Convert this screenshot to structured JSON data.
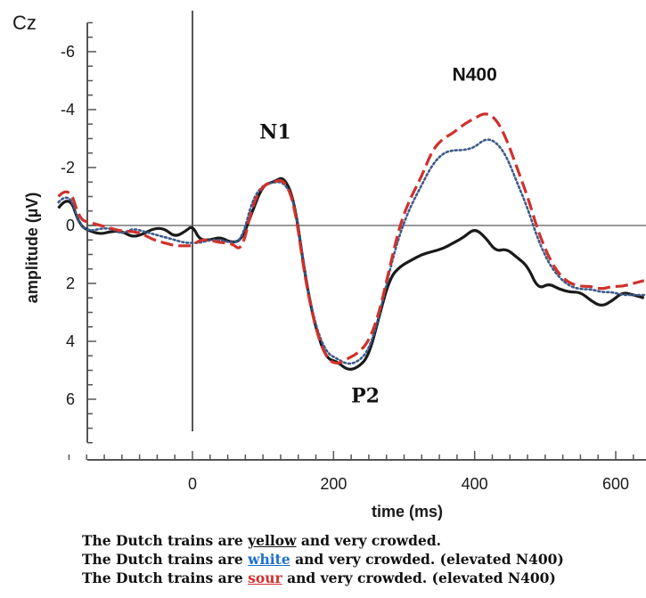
{
  "chart_data": {
    "type": "line",
    "channel_label": "Cz",
    "xlabel": "time (ms)",
    "ylabel": "amplitude (µV)",
    "xlim": [
      -190,
      640
    ],
    "ylim": [
      -7,
      7.5
    ],
    "y_inverted": true,
    "x_ticks": [
      0,
      200,
      400,
      600
    ],
    "x_tick_labels": [
      "0",
      "200",
      "400",
      "600"
    ],
    "y_ticks": [
      -6,
      -4,
      -2,
      0,
      2,
      4,
      6
    ],
    "y_tick_labels": [
      "-6",
      "-4",
      "-2",
      "0",
      "2",
      "4",
      "6"
    ],
    "annotations": [
      {
        "text": "N1",
        "x": 95,
        "y": -3.0
      },
      {
        "text": "P2",
        "x": 225,
        "y": 6.1
      },
      {
        "text": "N400",
        "x": 400,
        "y": -5.0
      }
    ],
    "series": [
      {
        "color": "#1a1a1a",
        "style": "solid",
        "x": [
          -190,
          -175,
          -160,
          -145,
          -130,
          -115,
          -100,
          -85,
          -70,
          -55,
          -40,
          -25,
          -10,
          0,
          10,
          25,
          40,
          55,
          70,
          85,
          100,
          115,
          130,
          145,
          160,
          175,
          190,
          205,
          220,
          235,
          250,
          265,
          280,
          295,
          310,
          325,
          340,
          355,
          370,
          385,
          400,
          415,
          430,
          445,
          460,
          475,
          490,
          505,
          520,
          535,
          550,
          565,
          580,
          595,
          610,
          625,
          640
        ],
        "y": [
          -0.6,
          -1.1,
          0.0,
          0.2,
          0.3,
          0.2,
          0.2,
          0.4,
          0.3,
          0.1,
          0.1,
          0.4,
          0.2,
          0.0,
          0.5,
          0.5,
          0.4,
          0.6,
          0.5,
          -0.5,
          -1.4,
          -1.5,
          -1.7,
          -0.8,
          1.8,
          3.6,
          4.6,
          4.7,
          5.0,
          4.9,
          4.5,
          3.1,
          1.8,
          1.4,
          1.2,
          1.0,
          0.9,
          0.8,
          0.6,
          0.4,
          0.1,
          0.4,
          0.9,
          0.8,
          1.1,
          1.4,
          2.2,
          2.0,
          2.2,
          2.3,
          2.3,
          2.6,
          2.8,
          2.6,
          2.3,
          2.4,
          2.5
        ]
      },
      {
        "color": "#3d5a8a",
        "style": "dotted",
        "x": [
          -190,
          -175,
          -160,
          -145,
          -130,
          -115,
          -100,
          -85,
          -70,
          -55,
          -40,
          -25,
          -10,
          0,
          10,
          25,
          40,
          55,
          70,
          85,
          100,
          115,
          130,
          145,
          160,
          175,
          190,
          205,
          220,
          235,
          250,
          265,
          280,
          295,
          310,
          325,
          340,
          355,
          370,
          385,
          400,
          415,
          430,
          445,
          460,
          475,
          490,
          505,
          520,
          535,
          550,
          565,
          580,
          595,
          610,
          625,
          640
        ],
        "y": [
          -0.8,
          -1.2,
          0.0,
          0.2,
          0.1,
          0.1,
          0.3,
          0.1,
          0.2,
          0.3,
          0.4,
          0.5,
          0.6,
          0.6,
          0.6,
          0.5,
          0.5,
          0.6,
          0.5,
          -0.9,
          -1.4,
          -1.5,
          -1.5,
          -0.8,
          1.8,
          3.5,
          4.4,
          4.6,
          4.8,
          4.7,
          4.3,
          3.1,
          1.5,
          0.2,
          -0.7,
          -1.4,
          -2.1,
          -2.5,
          -2.6,
          -2.6,
          -2.7,
          -3.0,
          -2.9,
          -2.4,
          -1.5,
          -0.6,
          0.5,
          1.3,
          1.8,
          2.1,
          2.2,
          2.2,
          2.3,
          2.3,
          2.4,
          2.4,
          2.4
        ]
      },
      {
        "color": "#d0312d",
        "style": "dashed",
        "x": [
          -190,
          -175,
          -160,
          -145,
          -130,
          -115,
          -100,
          -85,
          -70,
          -55,
          -40,
          -25,
          -10,
          0,
          10,
          25,
          40,
          55,
          70,
          85,
          100,
          115,
          130,
          145,
          160,
          175,
          190,
          205,
          220,
          235,
          250,
          265,
          280,
          295,
          310,
          325,
          340,
          355,
          370,
          385,
          400,
          415,
          430,
          445,
          460,
          475,
          490,
          505,
          520,
          535,
          550,
          565,
          580,
          595,
          610,
          625,
          640
        ],
        "y": [
          -1.0,
          -1.4,
          -0.2,
          -0.1,
          0.0,
          0.1,
          0.2,
          0.2,
          0.3,
          0.5,
          0.6,
          0.7,
          0.7,
          0.7,
          0.5,
          0.5,
          0.6,
          0.6,
          0.9,
          -0.7,
          -1.4,
          -1.5,
          -1.6,
          -0.7,
          1.9,
          3.6,
          4.6,
          4.8,
          4.6,
          4.4,
          4.0,
          3.0,
          1.4,
          -0.1,
          -1.0,
          -1.7,
          -2.6,
          -3.0,
          -3.2,
          -3.5,
          -3.7,
          -3.9,
          -3.7,
          -3.0,
          -2.0,
          -1.0,
          0.2,
          1.1,
          1.7,
          2.0,
          2.1,
          2.1,
          2.2,
          2.1,
          2.1,
          2.0,
          1.9
        ]
      }
    ]
  },
  "captions": [
    {
      "before": "The Dutch trains are ",
      "word": "yellow",
      "after": " and very crowded.",
      "color": "#111111"
    },
    {
      "before": "The Dutch trains are ",
      "word": "white",
      "after": " and very crowded. (elevated N400)",
      "color": "#1f6fd1"
    },
    {
      "before": "The Dutch trains are ",
      "word": "sour",
      "after": " and very crowded. (elevated N400)",
      "color": "#d0312d"
    }
  ]
}
